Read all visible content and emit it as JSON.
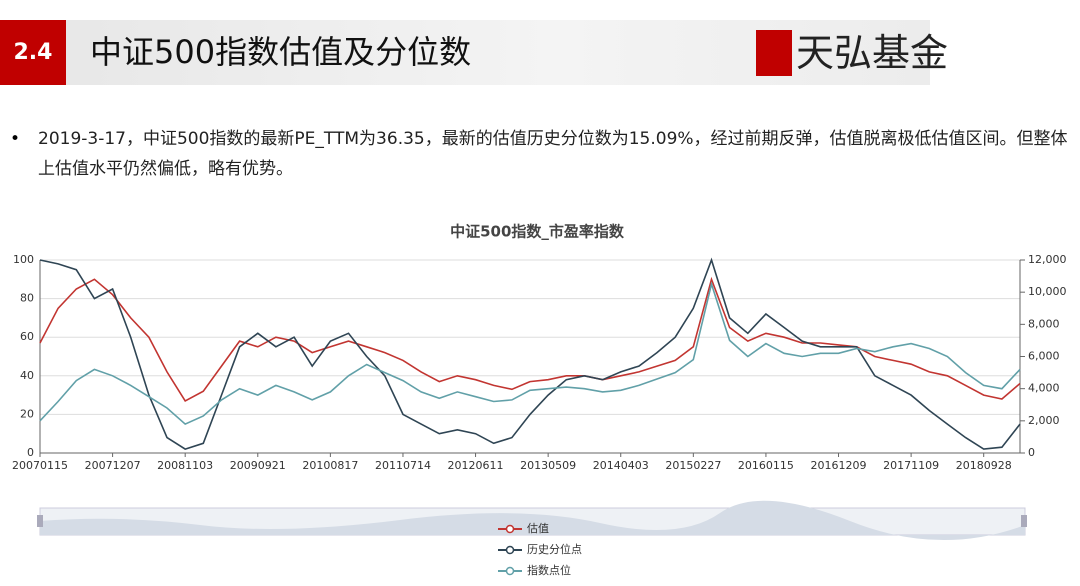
{
  "header": {
    "section": "2.4",
    "title": "中证500指数估值及分位数",
    "logo": "天弘基金"
  },
  "bullet": "2019-3-17，中证500指数的最新PE_TTM为36.35，最新的估值历史分位数为15.09%，经过前期反弹，估值脱离极低估值区间。但整体上估值水平仍然偏低，略有优势。",
  "chart_data": {
    "type": "line",
    "title": "中证500指数_市盈率指数",
    "categories": [
      "20070115",
      null,
      null,
      null,
      "20071207",
      null,
      null,
      null,
      "20081103",
      null,
      null,
      null,
      "20090921",
      null,
      null,
      null,
      "20100817",
      null,
      null,
      null,
      "20110714",
      null,
      null,
      null,
      "20120611",
      null,
      null,
      null,
      "20130509",
      null,
      null,
      null,
      "20140403",
      null,
      null,
      null,
      "20150227",
      null,
      null,
      null,
      "20160115",
      null,
      null,
      null,
      "20161209",
      null,
      null,
      null,
      "20171109",
      null,
      null,
      null,
      "20180928",
      null,
      null
    ],
    "ylim": [
      0,
      100
    ],
    "yticks": [
      0,
      20,
      40,
      60,
      80,
      100
    ],
    "y2lim": [
      0,
      12000
    ],
    "y2ticks": [
      0,
      {
        "value": 2000,
        "label": "2,000"
      },
      {
        "value": 4000,
        "label": "4,000"
      },
      {
        "value": 6000,
        "label": "6,000"
      },
      {
        "value": 8000,
        "label": "8,000"
      },
      {
        "value": 10000,
        "label": "10,000"
      },
      {
        "value": 12000,
        "label": "12,000"
      }
    ],
    "grid": true,
    "series": [
      {
        "name": "估值",
        "color": "#c23531",
        "values": [
          57,
          75,
          85,
          90,
          82,
          70,
          60,
          42,
          27,
          32,
          45,
          58,
          55,
          60,
          58,
          52,
          55,
          58,
          55,
          52,
          48,
          42,
          37,
          40,
          38,
          35,
          33,
          37,
          38,
          40,
          40,
          38,
          40,
          42,
          45,
          48,
          55,
          90,
          65,
          58,
          62,
          60,
          57,
          57,
          56,
          55,
          50,
          48,
          46,
          42,
          40,
          35,
          30,
          28,
          36
        ]
      },
      {
        "name": "历史分位点",
        "color": "#2f4554",
        "values": [
          100,
          98,
          95,
          80,
          85,
          60,
          30,
          8,
          2,
          5,
          30,
          55,
          62,
          55,
          60,
          45,
          58,
          62,
          50,
          40,
          20,
          15,
          10,
          12,
          10,
          5,
          8,
          20,
          30,
          38,
          40,
          38,
          42,
          45,
          52,
          60,
          75,
          100,
          70,
          62,
          72,
          65,
          58,
          55,
          55,
          55,
          40,
          35,
          30,
          22,
          15,
          8,
          2,
          3,
          15
        ]
      },
      {
        "name": "指数点位",
        "color": "#61a0a8",
        "axis": "y2",
        "values": [
          2000,
          3200,
          4500,
          5200,
          4800,
          4200,
          3500,
          2800,
          1800,
          2300,
          3300,
          4000,
          3600,
          4200,
          3800,
          3300,
          3800,
          4800,
          5500,
          5000,
          4500,
          3800,
          3400,
          3800,
          3500,
          3200,
          3300,
          3900,
          4000,
          4100,
          4000,
          3800,
          3900,
          4200,
          4600,
          5000,
          5800,
          10500,
          7000,
          6000,
          6800,
          6200,
          6000,
          6200,
          6200,
          6500,
          6300,
          6600,
          6800,
          6500,
          6000,
          5000,
          4200,
          4000,
          5200
        ]
      }
    ]
  }
}
